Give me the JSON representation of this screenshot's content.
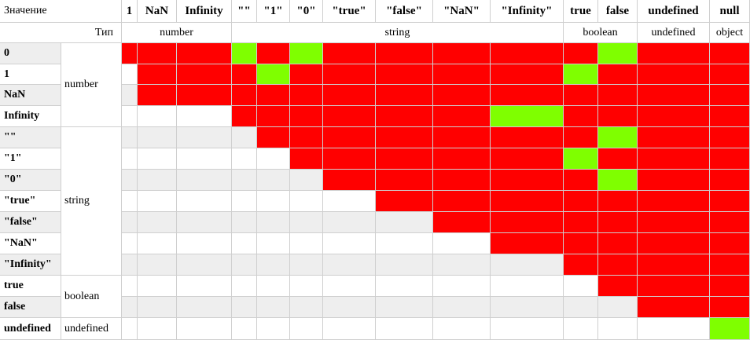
{
  "header": {
    "first": "Значение",
    "type_label": "Тип"
  },
  "columns": [
    "1",
    "NaN",
    "Infinity",
    "\"\"",
    "\"1\"",
    "\"0\"",
    "\"true\"",
    "\"false\"",
    "\"NaN\"",
    "\"Infinity\"",
    "true",
    "false",
    "undefined",
    "null"
  ],
  "column_types": [
    {
      "label": "number",
      "start": 0,
      "span": 3
    },
    {
      "label": "string",
      "start": 3,
      "span": 7
    },
    {
      "label": "boolean",
      "start": 10,
      "span": 2
    },
    {
      "label": "undefined",
      "start": 12,
      "span": 1
    },
    {
      "label": "object",
      "start": 13,
      "span": 1
    }
  ],
  "rows": [
    {
      "label": "0",
      "cells": "RRRGRGRRRRRGRR"
    },
    {
      "label": "1",
      "cells": "-RRRGRRRRRGRRR"
    },
    {
      "label": "NaN",
      "cells": "-RRRRRRRRRRRRR"
    },
    {
      "label": "Infinity",
      "cells": "---RRRRRRGRRRR"
    },
    {
      "label": "\"\"",
      "cells": "----RRRRRRRGRR"
    },
    {
      "label": "\"1\"",
      "cells": "-----RRRRRGRRR"
    },
    {
      "label": "\"0\"",
      "cells": "------RRRRRGRR"
    },
    {
      "label": "\"true\"",
      "cells": "-------RRRRRRR"
    },
    {
      "label": "\"false\"",
      "cells": "--------RRRRRR"
    },
    {
      "label": "\"NaN\"",
      "cells": "---------RRRRR"
    },
    {
      "label": "\"Infinity\"",
      "cells": "----------RRRR"
    },
    {
      "label": "true",
      "cells": "-----------RRR"
    },
    {
      "label": "false",
      "cells": "------------RR"
    },
    {
      "label": "undefined",
      "cells": "-------------G"
    }
  ],
  "row_groups": [
    {
      "label": "number",
      "start": 0,
      "span": 4
    },
    {
      "label": "string",
      "start": 4,
      "span": 7
    },
    {
      "label": "boolean",
      "start": 11,
      "span": 2
    },
    {
      "label": "undefined",
      "start": 13,
      "span": 1
    }
  ],
  "colors": {
    "not_equal": "#ff0000",
    "equal": "#7fff00",
    "stripe": "#eeeeee",
    "blank": "#ffffff",
    "grid": "#cfcfcf"
  },
  "legend": {
    "R": "not_equal",
    "G": "equal",
    "-": "blank"
  }
}
